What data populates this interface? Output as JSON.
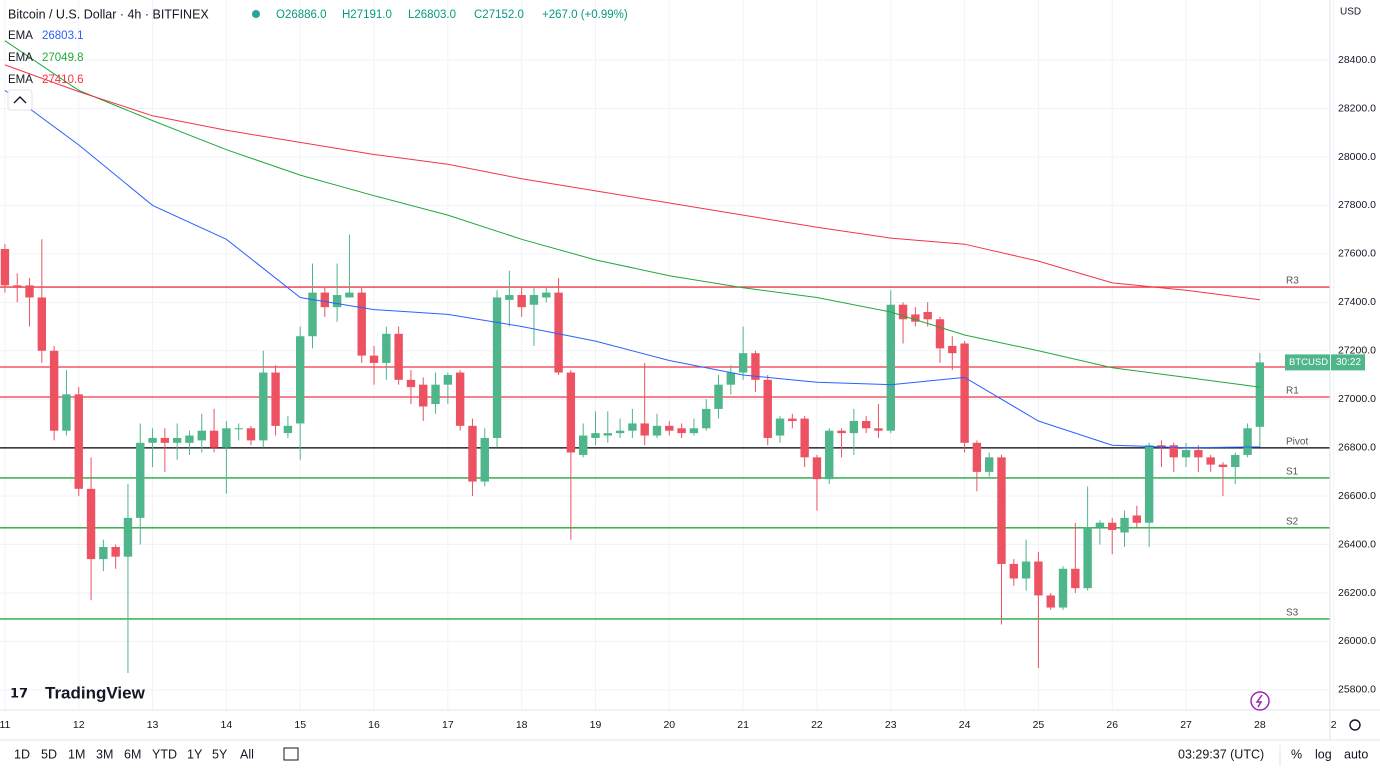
{
  "chart_data": {
    "type": "candlestick",
    "title": "Bitcoin / U.S. Dollar · 4h · BITFINEX",
    "ohlc_legend": [
      "O26886.0",
      "H27191.0",
      "L26803.0",
      "C27152.0",
      "+267.0 (+0.99%)"
    ],
    "currency": "USD",
    "up_color": "#4fb58a",
    "down_color": "#ec5262",
    "open": [
      27620,
      27470,
      27470,
      27420,
      27200,
      26870,
      27020,
      26630,
      26340,
      26390,
      26350,
      26510,
      26820,
      26840,
      26820,
      26820,
      26830,
      26870,
      26800,
      26880,
      26880,
      26830,
      27110,
      26860,
      26900,
      27260,
      27440,
      27380,
      27420,
      27440,
      27180,
      27150,
      27270,
      27080,
      27060,
      26980,
      27060,
      27110,
      26890,
      26660,
      26840,
      27410,
      27430,
      27390,
      27420,
      27440,
      27110,
      26770,
      26840,
      26850,
      26860,
      26870,
      26900,
      26850,
      26890,
      26880,
      26860,
      26880,
      26960,
      27060,
      27110,
      27190,
      27080,
      26850,
      26920,
      26920,
      26760,
      26670,
      26870,
      26860,
      26910,
      26880,
      26870,
      27390,
      27350,
      27360,
      27330,
      27220,
      27230,
      26820,
      26700,
      26760,
      26320,
      26260,
      26330,
      26190,
      26140,
      26300,
      26220,
      26470,
      26490,
      26450,
      26520,
      26490,
      26810,
      26810,
      26760,
      26790,
      26760,
      26730,
      26720,
      26770,
      26886
    ],
    "high": [
      27640,
      27520,
      27500,
      27660,
      27220,
      27120,
      27050,
      26760,
      26420,
      26400,
      26650,
      26900,
      26880,
      26880,
      26900,
      26870,
      26940,
      26960,
      26910,
      26900,
      26890,
      27200,
      27140,
      26930,
      27300,
      27560,
      27460,
      27560,
      27680,
      27460,
      27220,
      27300,
      27300,
      27120,
      27090,
      27110,
      27110,
      27120,
      26920,
      26880,
      27450,
      27530,
      27460,
      27460,
      27460,
      27500,
      27120,
      26900,
      26950,
      26950,
      26920,
      26960,
      27150,
      26940,
      26910,
      26900,
      26920,
      27000,
      27100,
      27140,
      27300,
      27200,
      27100,
      26930,
      26940,
      26930,
      26770,
      26880,
      26880,
      26960,
      26930,
      26980,
      27450,
      27400,
      27380,
      27400,
      27340,
      27260,
      27240,
      26830,
      26780,
      26770,
      26340,
      26420,
      26370,
      26200,
      26310,
      26490,
      26640,
      26500,
      26510,
      26540,
      26560,
      26820,
      26830,
      26820,
      26820,
      26810,
      26770,
      26740,
      26780,
      26900,
      27191
    ],
    "low": [
      27440,
      27400,
      27300,
      27150,
      26830,
      26850,
      26600,
      26170,
      26290,
      26300,
      25870,
      26400,
      26720,
      26700,
      26750,
      26770,
      26780,
      26780,
      26610,
      26830,
      26810,
      26800,
      26850,
      26840,
      26750,
      27210,
      27340,
      27320,
      27420,
      27150,
      27060,
      27080,
      27060,
      26980,
      26910,
      26940,
      26980,
      26870,
      26600,
      26640,
      26800,
      27300,
      27340,
      27220,
      27400,
      27100,
      26420,
      26760,
      26810,
      26820,
      26840,
      26840,
      26810,
      26840,
      26850,
      26840,
      26850,
      26870,
      26920,
      27020,
      27080,
      27030,
      26810,
      26820,
      26880,
      26720,
      26540,
      26650,
      26760,
      26770,
      26860,
      26840,
      26860,
      27230,
      27300,
      27300,
      27150,
      27120,
      26780,
      26620,
      26680,
      26070,
      26230,
      26210,
      25890,
      26130,
      26130,
      26200,
      26210,
      26400,
      26360,
      26390,
      26470,
      26390,
      26720,
      26700,
      26720,
      26700,
      26700,
      26600,
      26650,
      26760,
      26803
    ],
    "close": [
      27470,
      27460,
      27420,
      27200,
      26870,
      27020,
      26630,
      26340,
      26390,
      26350,
      26510,
      26820,
      26840,
      26820,
      26840,
      26850,
      26870,
      26800,
      26880,
      26880,
      26830,
      27110,
      26890,
      26890,
      27260,
      27440,
      27380,
      27430,
      27440,
      27180,
      27150,
      27270,
      27080,
      27050,
      26970,
      27060,
      27100,
      26890,
      26660,
      26840,
      27420,
      27430,
      27380,
      27430,
      27440,
      27110,
      26780,
      26850,
      26860,
      26860,
      26870,
      26900,
      26850,
      26890,
      26870,
      26860,
      26880,
      26960,
      27060,
      27110,
      27190,
      27080,
      26840,
      26920,
      26910,
      26760,
      26670,
      26870,
      26860,
      26910,
      26880,
      26870,
      27390,
      27330,
      27320,
      27330,
      27210,
      27190,
      26820,
      26700,
      26760,
      26320,
      26260,
      26330,
      26190,
      26140,
      26300,
      26220,
      26470,
      26490,
      26460,
      26510,
      26490,
      26810,
      26800,
      26760,
      26790,
      26760,
      26730,
      26720,
      26770,
      26880,
      27152
    ],
    "ema": [
      {
        "name": "EMA",
        "color": "#2962ff",
        "x": [
          0,
          6,
          12,
          18,
          24,
          30,
          36,
          42,
          48,
          54,
          60,
          66,
          72,
          78,
          84,
          90,
          96,
          102
        ],
        "values": [
          28275,
          28050,
          27800,
          27660,
          27420,
          27370,
          27350,
          27300,
          27240,
          27160,
          27100,
          27070,
          27060,
          27090,
          26910,
          26810,
          26800,
          26803.1
        ]
      },
      {
        "name": "EMA",
        "color": "#22a83a",
        "x": [
          0,
          6,
          12,
          18,
          24,
          30,
          36,
          42,
          48,
          54,
          60,
          66,
          72,
          78,
          84,
          90,
          96,
          102
        ],
        "values": [
          28480,
          28275,
          28150,
          28030,
          27925,
          27840,
          27760,
          27660,
          27575,
          27510,
          27460,
          27420,
          27360,
          27265,
          27200,
          27130,
          27090,
          27049.8
        ]
      },
      {
        "name": "EMA",
        "color": "#f23645",
        "x": [
          0,
          6,
          12,
          18,
          24,
          30,
          36,
          42,
          48,
          54,
          60,
          66,
          72,
          78,
          84,
          90,
          96,
          102
        ],
        "values": [
          28380,
          28270,
          28170,
          28110,
          28060,
          28010,
          27970,
          27910,
          27860,
          27810,
          27760,
          27710,
          27665,
          27640,
          27570,
          27480,
          27450,
          27410.6
        ]
      }
    ],
    "levels": [
      {
        "label": "R3",
        "value": 27463,
        "color": "#f23645"
      },
      {
        "value": 27133,
        "color": "#f23645"
      },
      {
        "label": "R1",
        "value": 27009,
        "color": "#f23645"
      },
      {
        "label": "Pivot",
        "value": 26799,
        "color": "#000000"
      },
      {
        "label": "S1",
        "value": 26675,
        "color": "#22a83a"
      },
      {
        "label": "S2",
        "value": 26469,
        "color": "#22a83a"
      },
      {
        "label": "S3",
        "value": 26093,
        "color": "#22a83a"
      }
    ],
    "price_tag": {
      "symbol": "BTCUSD",
      "countdown": "30:22"
    },
    "ylim": [
      25717,
      28648
    ],
    "yticks": [
      {
        "value": 25800,
        "label": "25800.0"
      },
      {
        "value": 26000,
        "label": "26000.0"
      },
      {
        "value": 26200,
        "label": "26200.0"
      },
      {
        "value": 26400,
        "label": "26400.0"
      },
      {
        "value": 26600,
        "label": "26600.0"
      },
      {
        "value": 26800,
        "label": "26800.0"
      },
      {
        "value": 27000,
        "label": "27000.0"
      },
      {
        "value": 27200,
        "label": "27200.0"
      },
      {
        "value": 27400,
        "label": "27400.0"
      },
      {
        "value": 27600,
        "label": "27600.0"
      },
      {
        "value": 27800,
        "label": "27800.0"
      },
      {
        "value": 28000,
        "label": "28000.0"
      },
      {
        "value": 28200,
        "label": "28200.0"
      },
      {
        "value": 28400,
        "label": "28400.0"
      }
    ],
    "xlim": [
      -0.4,
      107.7
    ],
    "xticks": [
      {
        "value": 0,
        "label": "11"
      },
      {
        "value": 6,
        "label": "12"
      },
      {
        "value": 12,
        "label": "13"
      },
      {
        "value": 18,
        "label": "14"
      },
      {
        "value": 24,
        "label": "15"
      },
      {
        "value": 30,
        "label": "16"
      },
      {
        "value": 36,
        "label": "17"
      },
      {
        "value": 42,
        "label": "18"
      },
      {
        "value": 48,
        "label": "19"
      },
      {
        "value": 54,
        "label": "20"
      },
      {
        "value": 60,
        "label": "21"
      },
      {
        "value": 66,
        "label": "22"
      },
      {
        "value": 72,
        "label": "23"
      },
      {
        "value": 78,
        "label": "24"
      },
      {
        "value": 84,
        "label": "25"
      },
      {
        "value": 90,
        "label": "26"
      },
      {
        "value": 96,
        "label": "27"
      },
      {
        "value": 102,
        "label": "28"
      },
      {
        "value": 108,
        "label": "2"
      }
    ],
    "grid": true
  },
  "ui": {
    "logo": "TradingView",
    "ranges": [
      "1D",
      "5D",
      "1M",
      "3M",
      "6M",
      "YTD",
      "1Y",
      "5Y",
      "All"
    ],
    "clock": "03:29:37 (UTC)",
    "options": [
      "%",
      "log",
      "auto"
    ]
  }
}
